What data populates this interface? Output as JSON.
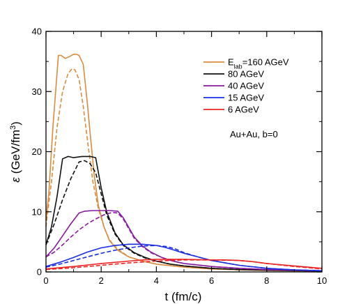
{
  "chart_data": {
    "type": "line",
    "xlabel": "t (fm/c)",
    "ylabel_symbol": "ε",
    "ylabel_units": "(GeV/fm",
    "ylabel_exp": "3",
    "ylabel_close": ")",
    "xlim": [
      0,
      10
    ],
    "ylim": [
      0,
      40
    ],
    "xticks": [
      0,
      2,
      4,
      6,
      8,
      10
    ],
    "yticks": [
      0,
      10,
      20,
      30,
      40
    ],
    "legend_position": "top-right",
    "annotation": "Au+Au, b=0",
    "legend": [
      {
        "main": "E",
        "sub": "lab",
        "rest": "=160 AGeV",
        "color": "#d98c3e"
      },
      {
        "main": "80 AGeV",
        "sub": "",
        "rest": "",
        "color": "#111111"
      },
      {
        "main": "40 AGeV",
        "sub": "",
        "rest": "",
        "color": "#8a1aa0"
      },
      {
        "main": "15 AGeV",
        "sub": "",
        "rest": "",
        "color": "#1a2ee6"
      },
      {
        "main": "6 AGeV",
        "sub": "",
        "rest": "",
        "color": "#ee2222"
      }
    ],
    "series": [
      {
        "color": "#d98c3e",
        "style": "solid",
        "x": [
          0,
          0.1,
          0.25,
          0.45,
          0.55,
          0.7,
          0.85,
          1.0,
          1.1,
          1.2,
          1.35,
          1.5,
          1.6,
          1.75,
          1.9,
          2.1,
          2.3,
          2.6,
          3.0,
          3.5,
          4.0,
          5.0,
          6.0,
          7.0,
          8.0,
          10.0
        ],
        "y": [
          8.5,
          13,
          24,
          36,
          36,
          35.5,
          35.8,
          36.2,
          36.2,
          36,
          34.5,
          28,
          23,
          16,
          11,
          7.5,
          5.2,
          3.6,
          2.5,
          1.8,
          1.3,
          0.8,
          0.5,
          0.35,
          0.25,
          0.12
        ]
      },
      {
        "color": "#d98c3e",
        "style": "dashed",
        "x": [
          0,
          0.2,
          0.4,
          0.6,
          0.8,
          0.95,
          1.05,
          1.2,
          1.35,
          1.5,
          1.7,
          1.9,
          2.1,
          2.3,
          2.6,
          3.0,
          3.5,
          4.0,
          5.0,
          6.0,
          7.0,
          8.0,
          10.0
        ],
        "y": [
          7.5,
          15,
          24,
          30,
          33,
          33.8,
          33.6,
          32,
          27.5,
          22,
          15,
          10.5,
          7.5,
          5.3,
          3.8,
          2.5,
          1.8,
          1.3,
          0.8,
          0.5,
          0.35,
          0.25,
          0.12
        ]
      },
      {
        "color": "#111111",
        "style": "solid",
        "x": [
          0,
          0.2,
          0.4,
          0.6,
          0.8,
          1.0,
          1.3,
          1.6,
          1.8,
          2.0,
          2.2,
          2.5,
          2.8,
          3.2,
          3.6,
          4.0,
          4.5,
          5.0,
          6.0,
          7.0,
          8.0,
          10.0
        ],
        "y": [
          4.5,
          7.5,
          12.5,
          18.8,
          19.2,
          19,
          19.2,
          19.2,
          19,
          14,
          10,
          6.5,
          4.5,
          3.2,
          2.4,
          1.8,
          1.3,
          1.0,
          0.6,
          0.4,
          0.3,
          0.15
        ]
      },
      {
        "color": "#111111",
        "style": "dashed",
        "x": [
          0,
          0.3,
          0.6,
          0.9,
          1.2,
          1.4,
          1.6,
          1.8,
          2.0,
          2.2,
          2.5,
          2.8,
          3.2,
          3.6,
          4.0,
          4.5,
          5.0,
          6.0,
          7.0,
          8.0,
          10.0
        ],
        "y": [
          4.5,
          8,
          12,
          15.5,
          18.3,
          18.5,
          18,
          16.5,
          13,
          9.5,
          6.3,
          4.4,
          3.1,
          2.3,
          1.8,
          1.3,
          1.0,
          0.6,
          0.4,
          0.3,
          0.15
        ]
      },
      {
        "color": "#8a1aa0",
        "style": "solid",
        "x": [
          0,
          0.3,
          0.6,
          0.9,
          1.2,
          1.4,
          1.7,
          2.0,
          2.3,
          2.6,
          2.8,
          3.0,
          3.2,
          3.5,
          3.8,
          4.2,
          4.6,
          5.0,
          6.0,
          7.0,
          8.0,
          10.0
        ],
        "y": [
          2.5,
          4,
          6,
          8,
          9.8,
          10.1,
          10.2,
          10.2,
          10.2,
          10.1,
          9,
          7.4,
          5.8,
          4.3,
          3.3,
          2.4,
          1.8,
          1.4,
          0.9,
          0.6,
          0.4,
          0.2
        ]
      },
      {
        "color": "#8a1aa0",
        "style": "dashed",
        "x": [
          0,
          0.3,
          0.6,
          0.9,
          1.2,
          1.5,
          1.8,
          2.1,
          2.4,
          2.6,
          2.8,
          3.0,
          3.2,
          3.5,
          3.8,
          4.2,
          4.6,
          5.0,
          6.0,
          7.0,
          8.0,
          10.0
        ],
        "y": [
          2.5,
          3.3,
          4.5,
          5.8,
          7,
          8,
          8.8,
          9.5,
          9.9,
          9.8,
          8.8,
          7.2,
          5.6,
          4.2,
          3.2,
          2.4,
          1.8,
          1.4,
          0.9,
          0.6,
          0.4,
          0.2
        ]
      },
      {
        "color": "#1a2ee6",
        "style": "solid",
        "x": [
          0,
          0.5,
          1.0,
          1.5,
          2.0,
          2.5,
          3.0,
          3.5,
          4.0,
          4.3,
          4.6,
          5.0,
          5.5,
          6.0,
          6.5,
          7.0,
          8.0,
          9.0,
          10.0
        ],
        "y": [
          0.9,
          1.6,
          2.4,
          3.3,
          4.0,
          4.4,
          4.6,
          4.6,
          4.4,
          4.1,
          3.7,
          3.1,
          2.5,
          1.9,
          1.5,
          1.1,
          0.6,
          0.35,
          0.2
        ]
      },
      {
        "color": "#1a2ee6",
        "style": "dashed",
        "x": [
          0,
          0.5,
          1.0,
          1.5,
          2.0,
          2.5,
          3.0,
          3.5,
          4.0,
          4.4,
          4.7,
          5.0,
          5.5,
          6.0,
          6.5,
          7.0,
          8.0,
          9.0,
          10.0
        ],
        "y": [
          0.8,
          1.3,
          1.9,
          2.5,
          3.1,
          3.6,
          4.0,
          4.3,
          4.4,
          4.2,
          3.8,
          3.2,
          2.5,
          1.9,
          1.5,
          1.1,
          0.6,
          0.35,
          0.2
        ]
      },
      {
        "color": "#ee2222",
        "style": "solid",
        "x": [
          0,
          1.0,
          2.0,
          3.0,
          3.5,
          4.0,
          5.0,
          6.0,
          6.5,
          7.0,
          7.5,
          8.0,
          9.0,
          10.0
        ],
        "y": [
          0.5,
          0.9,
          1.4,
          1.8,
          2.0,
          2.1,
          2.1,
          2.0,
          2.0,
          1.9,
          1.7,
          1.4,
          1.0,
          0.6
        ]
      },
      {
        "color": "#ee2222",
        "style": "dashed",
        "x": [
          0,
          1.0,
          2.0,
          3.0,
          4.0,
          5.0,
          6.0,
          7.0,
          7.5,
          8.0,
          9.0,
          10.0
        ],
        "y": [
          0.4,
          0.7,
          1.1,
          1.5,
          1.8,
          2.0,
          2.0,
          1.9,
          1.7,
          1.4,
          0.9,
          0.5
        ]
      }
    ]
  }
}
